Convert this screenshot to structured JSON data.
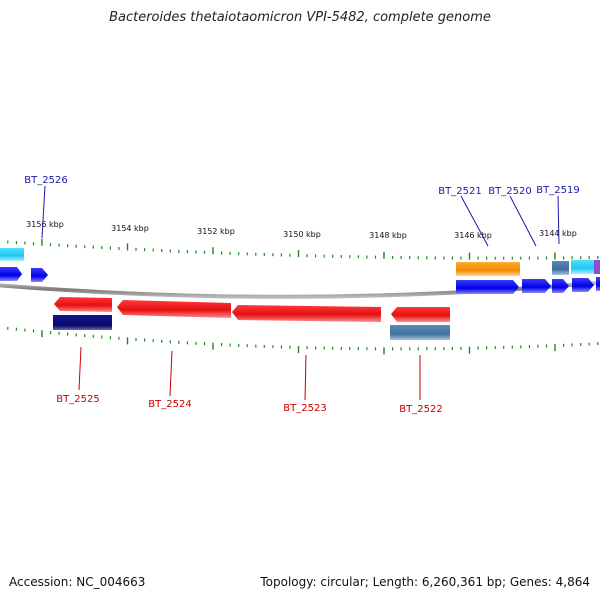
{
  "title": "Bacteroides thetaiotaomicron VPI-5482, complete genome",
  "footer": {
    "accession": "Accession: NC_004663",
    "topology": "Topology: circular; Length: 6,260,361 bp; Genes: 4,864"
  },
  "scale_labels": [
    "3156 kbp",
    "3154 kbp",
    "3152 kbp",
    "3150 kbp",
    "3148 kbp",
    "3146 kbp",
    "3144 kbp"
  ],
  "gene_labels": {
    "top": [
      "BT_2526",
      "BT_2521",
      "BT_2520",
      "BT_2519"
    ],
    "bottom": [
      "BT_2525",
      "BT_2524",
      "BT_2523",
      "BT_2522"
    ]
  },
  "colors": {
    "backbone": "#808080",
    "tick": "#1a8a1a",
    "top_label": "#1a1aa8",
    "bottom_label": "#cc0000",
    "red_gene": "#e41010",
    "blue_gene": "#0000ee",
    "navy_gene": "#0a0a6e",
    "steel_gene": "#3d6fa0",
    "orange_gene": "#f08c00",
    "cyan_gene": "#1ec8f0",
    "purple_gene": "#8a4fd8"
  }
}
